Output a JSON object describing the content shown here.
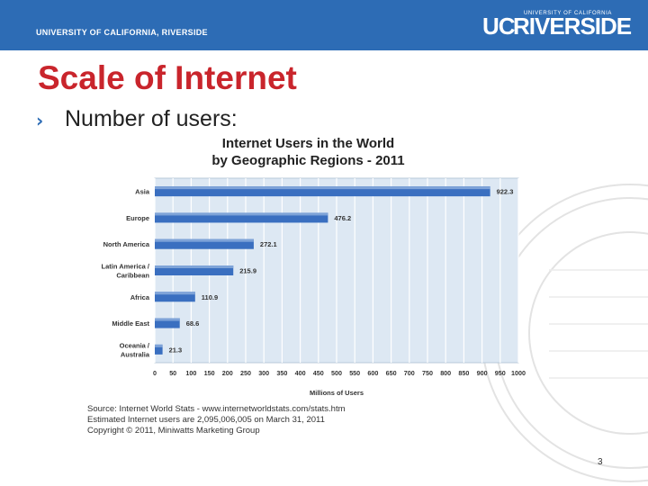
{
  "header": {
    "left_text": "UNIVERSITY OF CALIFORNIA, RIVERSIDE",
    "logo_small": "UNIVERSITY OF CALIFORNIA",
    "logo_uc": "UC",
    "logo_main": "RIVERSIDE",
    "bg_color": "#2d6cb5"
  },
  "slide": {
    "title": "Scale of Internet",
    "bullet": "Number of users:",
    "page_number": "3",
    "title_color": "#c9252c"
  },
  "chart_data": {
    "type": "bar",
    "orientation": "horizontal",
    "title_line1": "Internet Users in the World",
    "title_line2": "by Geographic Regions - 2011",
    "xlabel": "Millions of Users",
    "categories": [
      [
        "Asia"
      ],
      [
        "Europe"
      ],
      [
        "North America"
      ],
      [
        "Latin America /",
        "Caribbean"
      ],
      [
        "Africa"
      ],
      [
        "Middle East"
      ],
      [
        "Oceania /",
        "Australia"
      ]
    ],
    "values": [
      922.3,
      476.2,
      272.1,
      215.9,
      110.9,
      68.6,
      21.3
    ],
    "value_labels": [
      "922.3",
      "476.2",
      "272.1",
      "215.9",
      "110.9",
      "68.6",
      "21.3"
    ],
    "xlim": [
      0,
      1000
    ],
    "xticks": [
      0,
      50,
      100,
      150,
      200,
      250,
      300,
      350,
      400,
      450,
      500,
      550,
      600,
      650,
      700,
      750,
      800,
      850,
      900,
      950,
      1000
    ],
    "grid": true,
    "bar_color": "#3a6fc0",
    "plot_bg": "#dde8f3"
  },
  "source": {
    "line1": "Source: Internet World Stats - www.internetworldstats.com/stats.htm",
    "line2": "Estimated Internet users are 2,095,006,005 on March 31, 2011",
    "line3": "Copyright © 2011, Miniwatts Marketing Group"
  }
}
